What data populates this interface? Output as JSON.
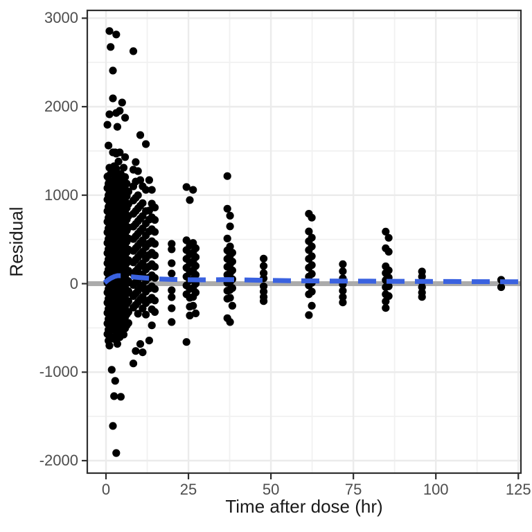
{
  "figure": {
    "xlabel": "Time after dose (hr)",
    "ylabel": "Residual"
  },
  "chart_data": {
    "type": "scatter",
    "title": "",
    "xlabel": "Time after dose (hr)",
    "ylabel": "Residual",
    "xlim": [
      -5.7,
      125.8
    ],
    "ylim": [
      -2140,
      3090
    ],
    "x_ticks": [
      0,
      25,
      50,
      75,
      100,
      125
    ],
    "x_minor_ticks": [
      12.5,
      37.5,
      62.5,
      87.5,
      112.5
    ],
    "y_ticks": [
      3000,
      2000,
      1000,
      0,
      -1000,
      -2000
    ],
    "y_minor_ticks": [
      2500,
      1500,
      500,
      -500,
      -1500
    ],
    "grid": true,
    "legend": "none",
    "point_color": "#000000",
    "point_radius": 5.6,
    "panel_border_color": "#2e2e2e",
    "grid_major_color": "#ebebeb",
    "grid_minor_color": "#f1f1f1",
    "reference_line": {
      "y": 0,
      "color": "#ababab",
      "width": 7
    },
    "smooth": {
      "color": "#3a62e0",
      "dashed": true,
      "width": 7,
      "path": [
        [
          -0.4,
          10
        ],
        [
          0.5,
          38
        ],
        [
          1.5,
          62
        ],
        [
          2.5,
          80
        ],
        [
          3.5,
          90
        ],
        [
          4.5,
          90
        ],
        [
          6,
          85
        ],
        [
          8,
          77
        ],
        [
          10,
          70
        ],
        [
          13,
          60
        ],
        [
          16,
          53
        ],
        [
          20,
          48
        ],
        [
          24,
          45
        ],
        [
          28,
          43
        ],
        [
          33,
          44
        ],
        [
          37,
          46
        ],
        [
          41,
          43
        ],
        [
          46,
          39
        ],
        [
          51,
          36
        ],
        [
          56,
          33
        ],
        [
          62,
          31
        ],
        [
          68,
          30
        ],
        [
          74,
          29
        ],
        [
          80,
          28
        ],
        [
          86,
          27
        ],
        [
          92,
          26
        ],
        [
          98,
          25
        ],
        [
          105,
          24
        ],
        [
          112,
          23
        ],
        [
          119,
          22
        ],
        [
          125.7,
          21
        ]
      ]
    },
    "series_by_time": [
      {
        "t": 0.45,
        "v": [
          1796,
          1210,
          1080,
          950,
          820,
          700,
          580,
          460,
          345,
          230,
          120,
          10,
          -100,
          -215,
          -330,
          -450,
          -570
        ]
      },
      {
        "t": 0.75,
        "v": [
          1561,
          1130,
          1000,
          870,
          745,
          625,
          505,
          390,
          275,
          160,
          50,
          -60,
          -170,
          -285,
          -400,
          -520,
          -645
        ]
      },
      {
        "t": 1.05,
        "v": [
          2855,
          1914,
          1310,
          1160,
          1020,
          890,
          765,
          640,
          520,
          400,
          285,
          170,
          55,
          -55,
          -170,
          -290,
          -410,
          -535,
          -700
        ]
      },
      {
        "t": 1.4,
        "v": [
          2675,
          1240,
          1100,
          965,
          835,
          710,
          585,
          465,
          345,
          225,
          110,
          0,
          -115,
          -230,
          -350,
          -475,
          -600
        ]
      },
      {
        "t": 1.75,
        "v": [
          1150,
          1035,
          905,
          780,
          655,
          535,
          415,
          295,
          180,
          65,
          -45,
          -160,
          -275,
          -395,
          -515,
          -973
        ]
      },
      {
        "t": 2.1,
        "v": [
          2408,
          2094,
          1483,
          1270,
          1125,
          985,
          850,
          720,
          595,
          470,
          350,
          230,
          115,
          0,
          -115,
          -235,
          -355,
          -480,
          -610,
          -1608
        ]
      },
      {
        "t": 2.45,
        "v": [
          1327,
          1233,
          1075,
          940,
          810,
          685,
          560,
          440,
          320,
          205,
          90,
          -25,
          -140,
          -255,
          -375,
          -500,
          -625,
          -1271
        ]
      },
      {
        "t": 2.8,
        "v": [
          1483,
          1190,
          1050,
          915,
          785,
          660,
          535,
          415,
          295,
          180,
          65,
          -50,
          -165,
          -285,
          -405,
          -530,
          -1098
        ]
      },
      {
        "t": 3.1,
        "v": [
          2816,
          1929,
          1469,
          1300,
          1155,
          1015,
          880,
          750,
          620,
          495,
          370,
          250,
          130,
          15,
          -100,
          -220,
          -340,
          -465,
          -590,
          -1914
        ]
      },
      {
        "t": 3.45,
        "v": [
          1772,
          1217,
          1090,
          955,
          825,
          700,
          575,
          455,
          335,
          215,
          100,
          -15,
          -130,
          -245,
          -365,
          -490,
          -680
        ]
      },
      {
        "t": 3.8,
        "v": [
          1380,
          1145,
          1010,
          875,
          745,
          620,
          495,
          375,
          255,
          140,
          25,
          -90,
          -205,
          -320,
          -440,
          -565
        ]
      },
      {
        "t": 4.15,
        "v": [
          1953,
          1483,
          1235,
          1095,
          960,
          830,
          705,
          580,
          460,
          340,
          225,
          110,
          -5,
          -120,
          -235,
          -355,
          -475,
          -605
        ]
      },
      {
        "t": 4.5,
        "v": [
          1240,
          1065,
          930,
          800,
          675,
          550,
          430,
          310,
          195,
          80,
          -35,
          -150,
          -265,
          -385,
          -510,
          -1278
        ]
      },
      {
        "t": 4.9,
        "v": [
          2047,
          1160,
          1020,
          885,
          755,
          630,
          505,
          385,
          265,
          150,
          35,
          -80,
          -195,
          -310,
          -430,
          -555
        ]
      },
      {
        "t": 5.35,
        "v": [
          1310,
          1135,
          1000,
          865,
          735,
          610,
          485,
          365,
          245,
          130,
          15,
          -100,
          -215,
          -330,
          -450,
          -575
        ]
      },
      {
        "t": 5.8,
        "v": [
          1875,
          1430,
          1205,
          1070,
          935,
          805,
          680,
          555,
          435,
          315,
          200,
          85,
          -30,
          -145,
          -260,
          -380,
          -505
        ]
      },
      {
        "t": 6.3,
        "v": [
          1130,
          990,
          855,
          725,
          600,
          475,
          355,
          235,
          120,
          5,
          -110,
          -225,
          -345,
          -470
        ]
      },
      {
        "t": 6.8,
        "v": [
          1040,
          900,
          765,
          635,
          510,
          385,
          265,
          145,
          30,
          -85,
          -200,
          -320,
          -445
        ]
      },
      {
        "t": 8.3,
        "v": [
          2627,
          1288,
          1100,
          940,
          790,
          645,
          505,
          370,
          240,
          110,
          -15,
          -140,
          -270,
          -902
        ]
      },
      {
        "t": 9.0,
        "v": [
          1374,
          1154,
          970,
          820,
          675,
          535,
          400,
          270,
          140,
          15,
          -110,
          -240,
          -761
        ]
      },
      {
        "t": 9.7,
        "v": [
          1272,
          1000,
          850,
          705,
          565,
          430,
          300,
          170,
          45,
          -80,
          -210,
          -340
        ]
      },
      {
        "t": 10.4,
        "v": [
          1679,
          1170,
          880,
          735,
          595,
          460,
          330,
          200,
          75,
          -50,
          -180,
          -682
        ]
      },
      {
        "t": 11.1,
        "v": [
          1100,
          910,
          765,
          625,
          490,
          360,
          230,
          105,
          -20,
          -150,
          -280,
          -776
        ]
      },
      {
        "t": 12.1,
        "v": [
          1577,
          1060,
          820,
          680,
          545,
          415,
          285,
          160,
          35,
          -90,
          -220,
          -350
        ]
      },
      {
        "t": 13.1,
        "v": [
          1170,
          826,
          724,
          590,
          455,
          325,
          195,
          70,
          -55,
          -185,
          -643
        ]
      },
      {
        "t": 13.9,
        "v": [
          1060,
          904,
          750,
          615,
          480,
          350,
          220,
          95,
          -30,
          -160,
          -290,
          -471
        ]
      },
      {
        "t": 14.8,
        "v": [
          860,
          720,
          585,
          450,
          320,
          190,
          65,
          -60,
          -190,
          -320
        ]
      },
      {
        "t": 19.9,
        "v": [
          450,
          388,
          231,
          114,
          -74,
          -153,
          -278,
          -434
        ]
      },
      {
        "t": 24.4,
        "v": [
          1092,
          490,
          380,
          280,
          180,
          80,
          -20,
          -120,
          -659
        ]
      },
      {
        "t": 25.4,
        "v": [
          945,
          430,
          330,
          230,
          130,
          40,
          -60,
          -160,
          -260,
          -360
        ]
      },
      {
        "t": 26.4,
        "v": [
          1060,
          460,
          350,
          250,
          150,
          50,
          -50,
          -150,
          -250
        ]
      },
      {
        "t": 27.2,
        "v": [
          400,
          300,
          200,
          100,
          0,
          -100,
          -336
        ]
      },
      {
        "t": 36.8,
        "v": [
          1216,
          847,
          510,
          376,
          280,
          190,
          100,
          10,
          -80,
          -170,
          -390
        ]
      },
      {
        "t": 37.6,
        "v": [
          768,
          647,
          420,
          320,
          220,
          120,
          20,
          -70,
          -160,
          -434
        ]
      },
      {
        "t": 38.3,
        "v": [
          350,
          250,
          150,
          50,
          -50,
          -250
        ]
      },
      {
        "t": 47.8,
        "v": [
          283,
          200,
          120,
          60,
          -30,
          -90,
          -150,
          -197
        ]
      },
      {
        "t": 61.5,
        "v": [
          790,
          590,
          480,
          380,
          280,
          180,
          80,
          -20,
          -120,
          -355
        ]
      },
      {
        "t": 62.4,
        "v": [
          746,
          520,
          420,
          310,
          210,
          110,
          10,
          -90,
          -250
        ]
      },
      {
        "t": 71.8,
        "v": [
          220,
          140,
          60,
          -10,
          -80,
          -150,
          -212
        ]
      },
      {
        "t": 84.8,
        "v": [
          588,
          400,
          196,
          120,
          40,
          -40,
          -120,
          -200,
          -275
        ]
      },
      {
        "t": 85.7,
        "v": [
          518,
          361,
          150,
          70,
          -30,
          -140
        ]
      },
      {
        "t": 95.8,
        "v": [
          137,
          80,
          20,
          -40,
          -100,
          -150
        ]
      },
      {
        "t": 119.8,
        "v": [
          43,
          -39
        ]
      }
    ]
  }
}
